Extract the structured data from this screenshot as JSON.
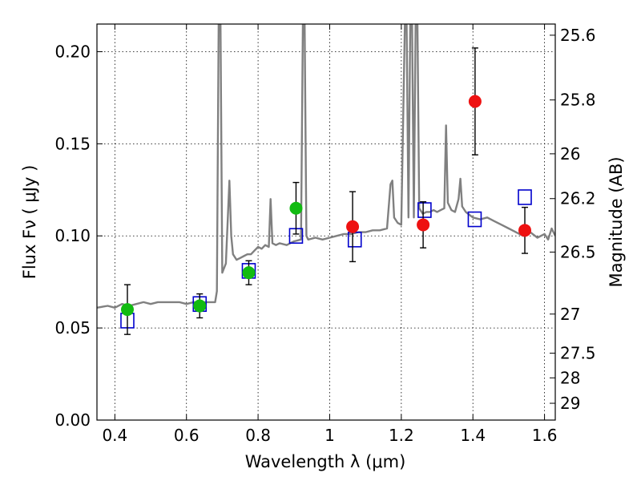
{
  "chart_data": {
    "type": "scatter",
    "xlabel": "Wavelength  λ (μm)",
    "ylabel": "Flux  Fν  ( μJy )",
    "y2label": "Magnitude (AB)",
    "xlim": [
      0.35,
      1.63
    ],
    "ylim": [
      0.0,
      0.215
    ],
    "x_ticks": [
      0.4,
      0.6,
      0.8,
      1.0,
      1.2,
      1.4,
      1.6
    ],
    "x_tick_labels": [
      "0.4",
      "0.6",
      "0.8",
      "1",
      "1.2",
      "1.4",
      "1.6"
    ],
    "y_ticks": [
      0.0,
      0.05,
      0.1,
      0.15,
      0.2
    ],
    "y_tick_labels": [
      "0.00",
      "0.05",
      "0.10",
      "0.15",
      "0.20"
    ],
    "y2_ticks": [
      25.6,
      25.8,
      26.0,
      26.2,
      26.5,
      27.0,
      27.5,
      28.0,
      29.0
    ],
    "y2_tick_labels": [
      "25.6",
      "25.8",
      "26",
      "26.2",
      "26.5",
      "27",
      "27.5",
      "28",
      "29"
    ],
    "grid": true,
    "series": [
      {
        "kind": "model-spectrum",
        "color": "#808080",
        "x": [
          0.35,
          0.38,
          0.4,
          0.42,
          0.44,
          0.46,
          0.48,
          0.5,
          0.52,
          0.54,
          0.56,
          0.58,
          0.6,
          0.62,
          0.64,
          0.66,
          0.68,
          0.685,
          0.69,
          0.695,
          0.7,
          0.71,
          0.72,
          0.725,
          0.73,
          0.74,
          0.75,
          0.76,
          0.77,
          0.78,
          0.79,
          0.8,
          0.81,
          0.82,
          0.83,
          0.835,
          0.84,
          0.85,
          0.86,
          0.88,
          0.9,
          0.92,
          0.925,
          0.93,
          0.935,
          0.94,
          0.96,
          0.98,
          1.0,
          1.02,
          1.04,
          1.06,
          1.08,
          1.1,
          1.12,
          1.14,
          1.16,
          1.17,
          1.175,
          1.18,
          1.19,
          1.2,
          1.21,
          1.215,
          1.22,
          1.225,
          1.23,
          1.235,
          1.24,
          1.245,
          1.25,
          1.26,
          1.27,
          1.28,
          1.29,
          1.3,
          1.31,
          1.32,
          1.325,
          1.33,
          1.34,
          1.35,
          1.36,
          1.365,
          1.37,
          1.38,
          1.4,
          1.42,
          1.44,
          1.46,
          1.48,
          1.5,
          1.52,
          1.54,
          1.56,
          1.58,
          1.6,
          1.61,
          1.62,
          1.63
        ],
        "y": [
          0.061,
          0.062,
          0.061,
          0.063,
          0.062,
          0.063,
          0.064,
          0.063,
          0.064,
          0.064,
          0.064,
          0.064,
          0.063,
          0.064,
          0.064,
          0.064,
          0.064,
          0.07,
          0.215,
          0.215,
          0.08,
          0.085,
          0.13,
          0.1,
          0.09,
          0.087,
          0.088,
          0.089,
          0.09,
          0.09,
          0.092,
          0.094,
          0.093,
          0.095,
          0.094,
          0.12,
          0.096,
          0.095,
          0.096,
          0.095,
          0.097,
          0.098,
          0.215,
          0.215,
          0.1,
          0.098,
          0.099,
          0.098,
          0.099,
          0.1,
          0.101,
          0.101,
          0.102,
          0.102,
          0.103,
          0.103,
          0.104,
          0.128,
          0.13,
          0.11,
          0.107,
          0.106,
          0.215,
          0.215,
          0.11,
          0.215,
          0.215,
          0.11,
          0.215,
          0.215,
          0.115,
          0.112,
          0.113,
          0.113,
          0.114,
          0.113,
          0.114,
          0.115,
          0.16,
          0.118,
          0.114,
          0.113,
          0.12,
          0.131,
          0.116,
          0.113,
          0.11,
          0.109,
          0.11,
          0.108,
          0.106,
          0.104,
          0.102,
          0.1,
          0.102,
          0.099,
          0.101,
          0.098,
          0.104,
          0.1
        ]
      },
      {
        "kind": "model-photometry",
        "marker": "open-square",
        "color": "#0000cc",
        "x": [
          0.435,
          0.637,
          0.774,
          0.906,
          1.07,
          1.265,
          1.405,
          1.545
        ],
        "y": [
          0.054,
          0.063,
          0.081,
          0.1,
          0.098,
          0.114,
          0.109,
          0.121
        ]
      },
      {
        "kind": "observed-optical",
        "marker": "filled-circle",
        "color": "#11bb11",
        "x": [
          0.435,
          0.637,
          0.774,
          0.906
        ],
        "y": [
          0.06,
          0.062,
          0.08,
          0.115
        ],
        "yerr": [
          0.0135,
          0.0065,
          0.0065,
          0.014
        ]
      },
      {
        "kind": "observed-nir",
        "marker": "filled-circle",
        "color": "#ee1111",
        "x": [
          1.064,
          1.261,
          1.406,
          1.545
        ],
        "y": [
          0.105,
          0.106,
          0.173,
          0.103
        ],
        "yerr": [
          0.019,
          0.0125,
          0.029,
          0.0125
        ]
      }
    ]
  }
}
